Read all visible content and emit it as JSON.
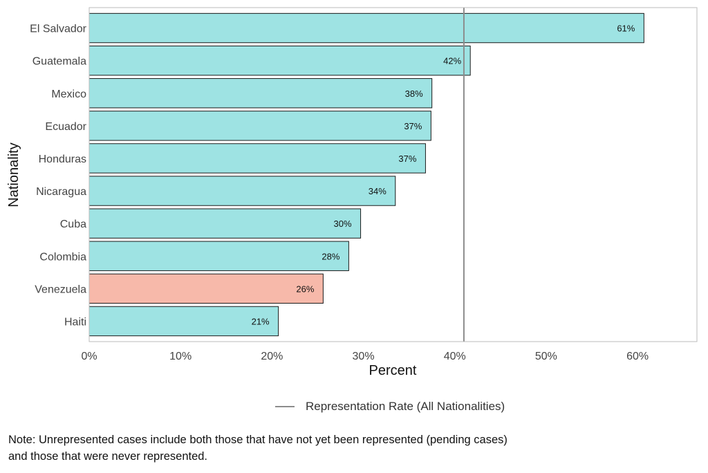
{
  "chart_data": {
    "type": "bar",
    "orientation": "horizontal",
    "categories": [
      "El Salvador",
      "Guatemala",
      "Mexico",
      "Ecuador",
      "Honduras",
      "Nicaragua",
      "Cuba",
      "Colombia",
      "Venezuela",
      "Haiti"
    ],
    "values": [
      60.7,
      41.7,
      37.5,
      37.4,
      36.8,
      33.5,
      29.7,
      28.4,
      25.6,
      20.7
    ],
    "data_labels": [
      "61%",
      "42%",
      "38%",
      "37%",
      "37%",
      "34%",
      "30%",
      "28%",
      "26%",
      "21%"
    ],
    "highlight_category": "Venezuela",
    "xlabel": "Percent",
    "ylabel": "Nationality",
    "xlim": [
      0,
      66.5
    ],
    "xticks": [
      0,
      10,
      20,
      30,
      40,
      50,
      60
    ],
    "xtick_labels": [
      "0%",
      "10%",
      "20%",
      "30%",
      "40%",
      "50%",
      "60%"
    ],
    "reference_line": {
      "value": 41,
      "label": "Representation Rate (All Nationalities)"
    },
    "grid": false,
    "legend_placement": "bottom",
    "colors": {
      "bar": "#9ee3e3",
      "highlight": "#f7b9aa",
      "bar_stroke": "#1a1a1a",
      "reference_line": "#8c8c8c",
      "frame": "#bbbbbb"
    }
  },
  "note": {
    "line1": "Note: Unrepresented cases include both those that have not yet been represented (pending cases)",
    "line2": "and those that were never represented."
  }
}
